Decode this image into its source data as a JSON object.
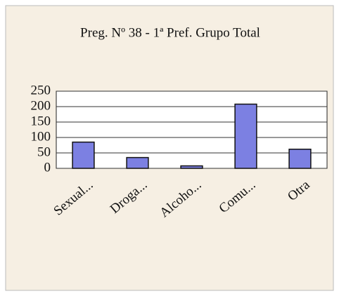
{
  "chart_data": {
    "type": "bar",
    "title": "Preg. Nº 38 - 1ª Pref. Grupo Total",
    "categories": [
      "Sexual...",
      "Droga...",
      "Alcoho...",
      "Comu...",
      "Otra"
    ],
    "values": [
      85,
      35,
      8,
      208,
      62
    ],
    "color": "#7c80e2",
    "ylim": [
      0,
      250
    ],
    "yticks": [
      0,
      50,
      100,
      150,
      200,
      250
    ],
    "grid": true
  }
}
